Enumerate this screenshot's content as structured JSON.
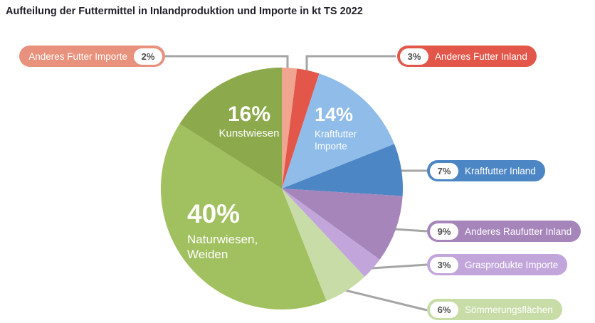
{
  "title": "Aufteilung der Futtermittel in Inlandproduktion und Importe in kt TS 2022",
  "chart_data": {
    "type": "pie",
    "title": "Aufteilung der Futtermittel in Inlandproduktion und Importe in kt TS 2022",
    "unit": "% Anteil (in kt TS, 2022)",
    "start_angle_deg": 0,
    "direction": "clockwise",
    "legend_position": "callout-pills",
    "slices": [
      {
        "label": "Anderes Futter Importe",
        "value": 2,
        "color": "#efa590",
        "callout": "left"
      },
      {
        "label": "Anderes Futter Inland",
        "value": 3,
        "color": "#e2574a",
        "callout": "right"
      },
      {
        "label": "Kraftfutter Importe",
        "value": 14,
        "color": "#8fbce9",
        "callout": "inside"
      },
      {
        "label": "Kraftfutter Inland",
        "value": 7,
        "color": "#4c86c4",
        "callout": "right"
      },
      {
        "label": "Anderes Raufutter Inland",
        "value": 9,
        "color": "#a685bb",
        "callout": "right"
      },
      {
        "label": "Grasprodukte Importe",
        "value": 3,
        "color": "#c2a6db",
        "callout": "right"
      },
      {
        "label": "Sömmerungsflächen",
        "value": 6,
        "color": "#c7dca6",
        "callout": "right"
      },
      {
        "label": "Naturwiesen, Weiden",
        "value": 40,
        "color": "#a1c05f",
        "callout": "inside"
      },
      {
        "label": "Kunstwiesen",
        "value": 16,
        "color": "#8ca94b",
        "callout": "inside"
      }
    ]
  },
  "callouts": {
    "anderes_futter_importe": {
      "label": "Anderes Futter Importe",
      "pct": "2%"
    },
    "anderes_futter_inland": {
      "label": "Anderes Futter Inland",
      "pct": "3%"
    },
    "kraftfutter_inland": {
      "label": "Kraftfutter Inland",
      "pct": "7%"
    },
    "anderes_raufutter_inland": {
      "label": "Anderes Raufutter Inland",
      "pct": "9%"
    },
    "grasprodukte_importe": {
      "label": "Grasprodukte Importe",
      "pct": "3%"
    },
    "soemmerungsflaechen": {
      "label": "Sömmerungsflächen",
      "pct": "6%"
    }
  },
  "inside_labels": {
    "kunstwiesen": {
      "pct": "16%",
      "label": "Kunstwiesen"
    },
    "kraftfutter_importe": {
      "pct": "14%",
      "line1": "Kraftfutter",
      "line2": "Importe"
    },
    "naturwiesen": {
      "pct": "40%",
      "line1": "Naturwiesen,",
      "line2": "Weiden"
    }
  },
  "colors": {
    "salmon": "#e8917c",
    "red": "#e2574a",
    "light_blue": "#8fbce9",
    "dark_blue": "#4c86c4",
    "purple": "#a685bb",
    "lavender": "#c2a6db",
    "pale_green": "#c7dca6",
    "bright_green": "#a1c05f",
    "olive_green": "#8ca94b",
    "leader_line": "#a5a5a5",
    "badge_text": "#4d4d4d",
    "title_text": "#20202a"
  }
}
